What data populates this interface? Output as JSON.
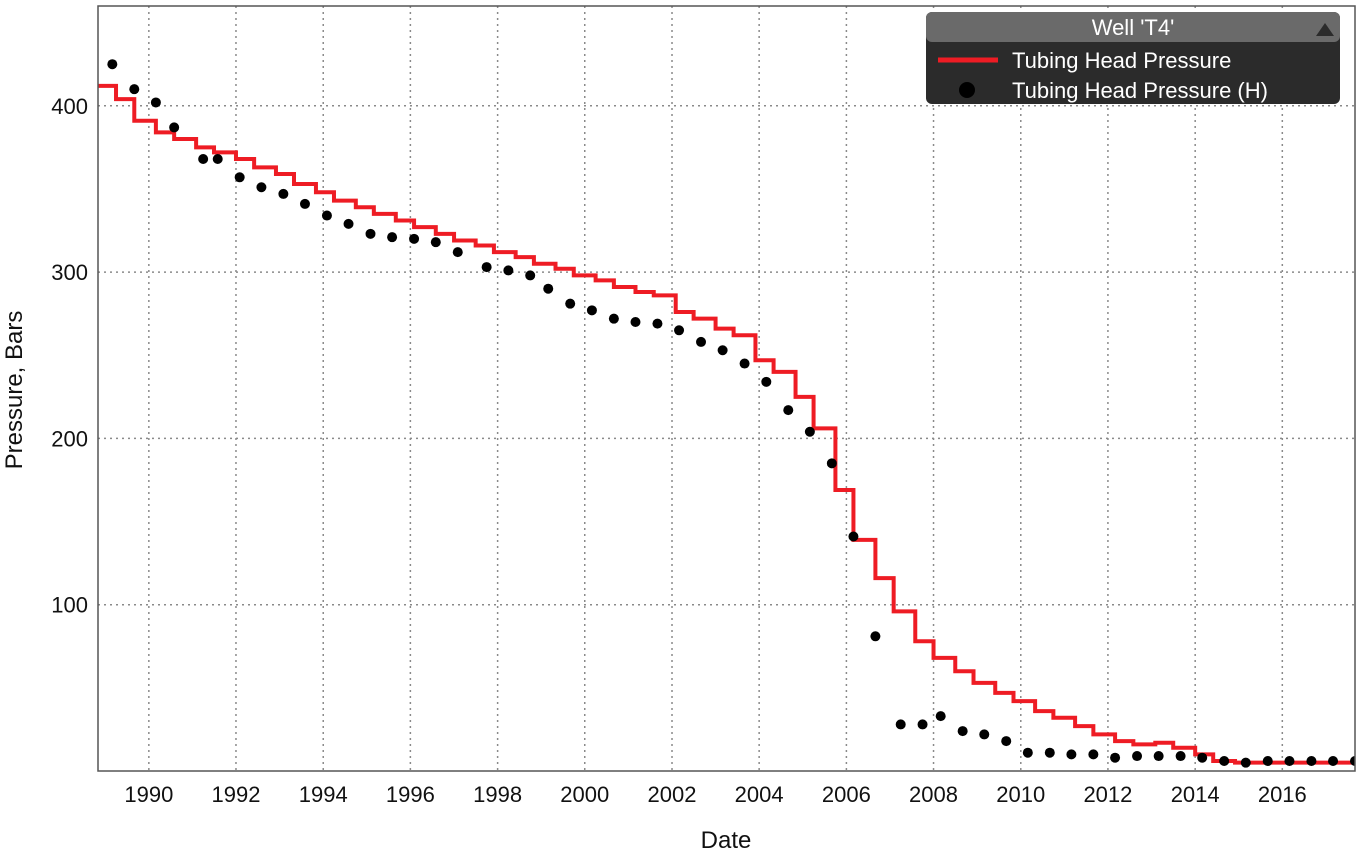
{
  "chart_data": {
    "type": "line",
    "xlabel": "Date",
    "ylabel": "Pressure, Bars",
    "xlim": [
      "1988-11-01",
      "2017-09-01"
    ],
    "ylim": [
      0,
      460
    ],
    "x_ticks": [
      "1990",
      "1992",
      "1994",
      "1996",
      "1998",
      "2000",
      "2002",
      "2004",
      "2006",
      "2008",
      "2010",
      "2012",
      "2014",
      "2016"
    ],
    "y_ticks": [
      100,
      200,
      300,
      400
    ],
    "grid": true,
    "legend": {
      "title": "Well 'T4'",
      "placement": "top-right",
      "collapse_icon": "triangle-up-icon",
      "background": "#2b2b2b",
      "items": [
        "Tubing Head Pressure",
        "Tubing Head Pressure (H)"
      ]
    },
    "series": [
      {
        "name": "Tubing Head Pressure",
        "style": "step",
        "color": "#ee1c24",
        "x": [
          "1988-11-01",
          "1989-04-01",
          "1989-09-01",
          "1990-03-01",
          "1990-08-01",
          "1991-02-01",
          "1991-07-01",
          "1992-01-01",
          "1992-06-01",
          "1992-12-01",
          "1993-05-01",
          "1993-11-01",
          "1994-04-01",
          "1994-10-01",
          "1995-03-01",
          "1995-09-01",
          "1996-02-01",
          "1996-08-01",
          "1997-01-01",
          "1997-07-01",
          "1997-12-01",
          "1998-06-01",
          "1998-11-01",
          "1999-05-01",
          "1999-10-01",
          "2000-04-01",
          "2000-09-01",
          "2001-03-01",
          "2001-08-01",
          "2002-02-01",
          "2002-07-01",
          "2003-01-01",
          "2003-06-01",
          "2003-12-01",
          "2004-05-01",
          "2004-11-01",
          "2005-04-01",
          "2005-10-01",
          "2006-03-01",
          "2006-09-01",
          "2007-02-01",
          "2007-08-01",
          "2008-01-01",
          "2008-07-01",
          "2008-12-01",
          "2009-06-01",
          "2009-11-01",
          "2010-05-01",
          "2010-10-01",
          "2011-04-01",
          "2011-09-01",
          "2012-03-01",
          "2012-08-01",
          "2013-02-01",
          "2013-07-01",
          "2014-01-01",
          "2014-06-01",
          "2014-12-01",
          "2015-05-01",
          "2015-11-01",
          "2016-04-01",
          "2016-10-01",
          "2017-03-01",
          "2017-09-01"
        ],
        "y": [
          412,
          404,
          391,
          384,
          380,
          375,
          372,
          368,
          363,
          359,
          353,
          348,
          343,
          339,
          335,
          331,
          327,
          323,
          319,
          316,
          312,
          309,
          305,
          302,
          298,
          295,
          291,
          288,
          286,
          276,
          272,
          266,
          262,
          247,
          240,
          225,
          206,
          169,
          139,
          116,
          96,
          78,
          68,
          60,
          53,
          47,
          42,
          36,
          32,
          27,
          22,
          18,
          16,
          17,
          14,
          10,
          6,
          5,
          5,
          5,
          5,
          5,
          5,
          5
        ]
      },
      {
        "name": "Tubing Head Pressure (H)",
        "style": "markers",
        "color": "#000000",
        "x": [
          "1989-03-01",
          "1989-09-01",
          "1990-03-01",
          "1990-08-01",
          "1991-04-01",
          "1991-08-01",
          "1992-02-01",
          "1992-08-01",
          "1993-02-01",
          "1993-08-01",
          "1994-02-01",
          "1994-08-01",
          "1995-02-01",
          "1995-08-01",
          "1996-02-01",
          "1996-08-01",
          "1997-02-01",
          "1997-10-01",
          "1998-04-01",
          "1998-10-01",
          "1999-03-01",
          "1999-09-01",
          "2000-03-01",
          "2000-09-01",
          "2001-03-01",
          "2001-09-01",
          "2002-03-01",
          "2002-09-01",
          "2003-03-01",
          "2003-09-01",
          "2004-03-01",
          "2004-09-01",
          "2005-03-01",
          "2005-09-01",
          "2006-03-01",
          "2006-09-01",
          "2007-04-01",
          "2007-10-01",
          "2008-03-01",
          "2008-09-01",
          "2009-03-01",
          "2009-09-01",
          "2010-03-01",
          "2010-09-01",
          "2011-03-01",
          "2011-09-01",
          "2012-03-01",
          "2012-09-01",
          "2013-03-01",
          "2013-09-01",
          "2014-03-01",
          "2014-09-01",
          "2015-03-01",
          "2015-09-01",
          "2016-03-01",
          "2016-09-01",
          "2017-03-01",
          "2017-09-01"
        ],
        "y": [
          425,
          410,
          402,
          387,
          368,
          368,
          357,
          351,
          347,
          341,
          334,
          329,
          323,
          321,
          320,
          318,
          312,
          303,
          301,
          298,
          290,
          281,
          277,
          272,
          270,
          269,
          265,
          258,
          253,
          245,
          234,
          217,
          204,
          185,
          141,
          81,
          28,
          28,
          33,
          24,
          22,
          18,
          11,
          11,
          10,
          10,
          8,
          9,
          9,
          9,
          8,
          6,
          5,
          6,
          6,
          6,
          6,
          6
        ]
      }
    ]
  }
}
